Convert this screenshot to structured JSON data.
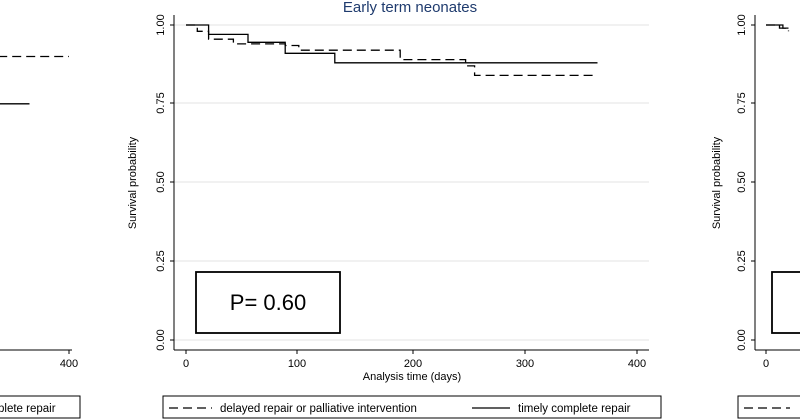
{
  "chart_data": [
    {
      "type": "line",
      "title": "",
      "xlabel": "",
      "ylabel": "",
      "xlim": [
        null,
        400
      ],
      "x_ticks_visible": [
        "400"
      ],
      "series": [
        {
          "style": "dashed",
          "x": [
            300,
            400
          ],
          "y": [
            0.9,
            0.9
          ]
        },
        {
          "style": "solid",
          "x": [
            300,
            365
          ],
          "y": [
            0.75,
            0.75
          ]
        }
      ],
      "legend": {
        "visible_text": "plete repair",
        "position": "bottom"
      },
      "partially_visible": "cropped left edge"
    },
    {
      "type": "line",
      "title": "Early term neonates",
      "xlabel": "Analysis time (days)",
      "ylabel": "Survival probability",
      "xlim": [
        0,
        400
      ],
      "ylim": [
        0,
        1
      ],
      "x_ticks": [
        "0",
        "100",
        "200",
        "300",
        "400"
      ],
      "y_ticks": [
        "0.00",
        "0.25",
        "0.50",
        "0.75",
        "1.00"
      ],
      "grid": true,
      "series": [
        {
          "name": "delayed repair or palliative intervention",
          "style": "dashed",
          "x": [
            0,
            10,
            20,
            42,
            88,
            100,
            190,
            248,
            256,
            365
          ],
          "y": [
            1.0,
            0.98,
            0.955,
            0.94,
            0.935,
            0.92,
            0.89,
            0.87,
            0.84,
            0.84
          ]
        },
        {
          "name": "timely complete repair",
          "style": "solid",
          "x": [
            0,
            20,
            55,
            88,
            132,
            365
          ],
          "y": [
            1.0,
            0.97,
            0.945,
            0.91,
            0.88,
            0.88
          ]
        }
      ],
      "annotation": "P= 0.60",
      "legend_position": "bottom"
    },
    {
      "type": "line",
      "title": "",
      "xlabel": "",
      "ylabel": "Survival probability",
      "xlim": [
        0,
        100
      ],
      "ylim": [
        0,
        1
      ],
      "x_ticks_visible": [
        "0"
      ],
      "y_ticks": [
        "0.00",
        "0.25",
        "0.50",
        "0.75",
        "1.00"
      ],
      "series": [
        {
          "style": "dashed",
          "x": [
            0,
            12,
            20
          ],
          "y": [
            1.0,
            0.99,
            0.98
          ]
        },
        {
          "style": "solid",
          "x": [
            0,
            15,
            20
          ],
          "y": [
            1.0,
            0.99,
            0.99
          ]
        }
      ],
      "partially_visible": "cropped right edge"
    }
  ]
}
